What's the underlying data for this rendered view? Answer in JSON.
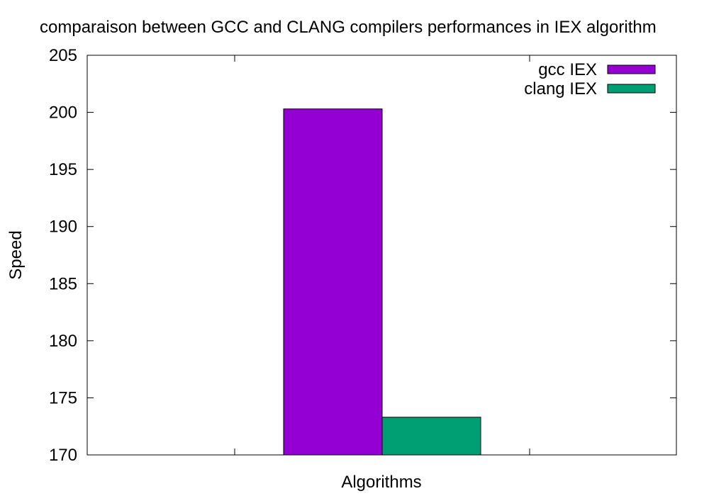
{
  "chart_data": {
    "type": "bar",
    "title": "comparaison between GCC and CLANG compilers performances in IEX algorithm",
    "xlabel": "Algorithms",
    "ylabel": "Speed",
    "categories": [
      ""
    ],
    "series": [
      {
        "name": "gcc IEX",
        "values": [
          200.3
        ],
        "color": "#9400d3"
      },
      {
        "name": "clang IEX",
        "values": [
          173.3
        ],
        "color": "#009e73"
      }
    ],
    "ylim": [
      170,
      205
    ],
    "yticks": [
      "170",
      "175",
      "180",
      "185",
      "190",
      "195",
      "200",
      "205"
    ],
    "grid": false,
    "legend": "top-right"
  }
}
